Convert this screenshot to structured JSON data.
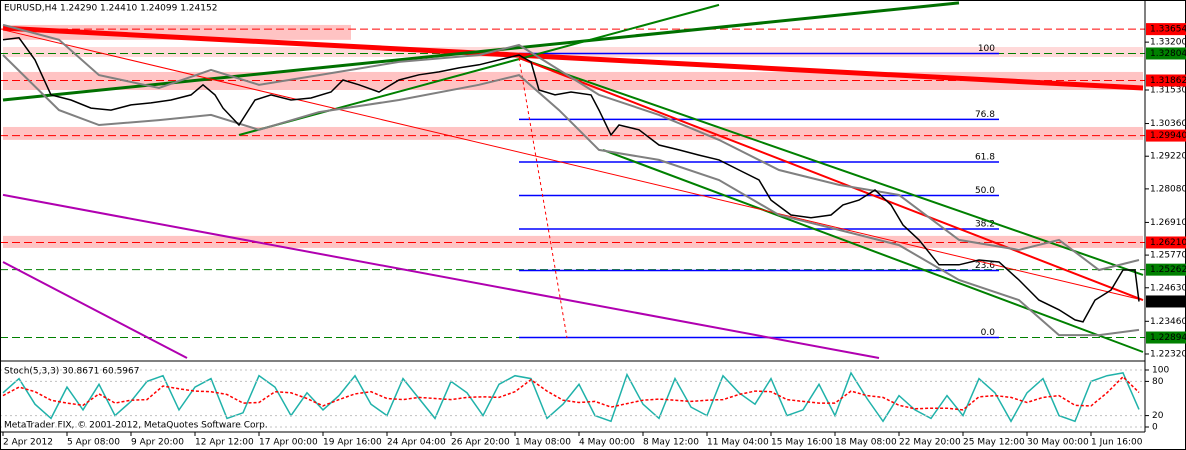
{
  "chart_data": [
    {
      "type": "line",
      "title": "EURUSD,H4  1.24290 1.24410 1.24099 1.24152",
      "xlim": [
        0,
        285
      ],
      "xticks": [
        {
          "value": 0,
          "label": "2 Apr 2012"
        },
        {
          "value": 16,
          "label": "5 Apr 08:00"
        },
        {
          "value": 32,
          "label": "9 Apr 20:00"
        },
        {
          "value": 48,
          "label": "12 Apr 12:00"
        },
        {
          "value": 64,
          "label": "17 Apr 00:00"
        },
        {
          "value": 80,
          "label": "19 Apr 16:00"
        },
        {
          "value": 96,
          "label": "24 Apr 04:00"
        },
        {
          "value": 112,
          "label": "26 Apr 20:00"
        },
        {
          "value": 128,
          "label": "1 May 08:00"
        },
        {
          "value": 144,
          "label": "4 May 00:00"
        },
        {
          "value": 160,
          "label": "8 May 12:00"
        },
        {
          "value": 176,
          "label": "11 May 04:00"
        },
        {
          "value": 192,
          "label": "15 May 16:00"
        },
        {
          "value": 208,
          "label": "18 May 08:00"
        },
        {
          "value": 224,
          "label": "22 May 20:00"
        },
        {
          "value": 240,
          "label": "25 May 12:00"
        },
        {
          "value": 256,
          "label": "30 May 00:00"
        },
        {
          "value": 272,
          "label": "1 Jun 16:00"
        }
      ],
      "ylim": [
        1.2211,
        1.3467
      ],
      "yticks": [
        {
          "value": 1.332,
          "label": "1.33200"
        },
        {
          "value": 1.3153,
          "label": "1.31530"
        },
        {
          "value": 1.3036,
          "label": "1.30360"
        },
        {
          "value": 1.2922,
          "label": "1.29220"
        },
        {
          "value": 1.2808,
          "label": "1.28080"
        },
        {
          "value": 1.2691,
          "label": "1.26910"
        },
        {
          "value": 1.2577,
          "label": "1.25770"
        },
        {
          "value": 1.2463,
          "label": "1.24630"
        },
        {
          "value": 1.2346,
          "label": "1.23460"
        },
        {
          "value": 1.2232,
          "label": "1.22320"
        }
      ],
      "grid": false,
      "series": [
        {
          "color": "#000000",
          "x": [
            0,
            4,
            8,
            12,
            17,
            22,
            27,
            32,
            37,
            42,
            47,
            50,
            53,
            55,
            59,
            63,
            67,
            72,
            77,
            82,
            85,
            89,
            94,
            99,
            104,
            109,
            114,
            119,
            124,
            129,
            132,
            134,
            138,
            142,
            147,
            149,
            152,
            154,
            159,
            164,
            169,
            174,
            179,
            184,
            189,
            192,
            197,
            202,
            207,
            210,
            214,
            218,
            222,
            225,
            229,
            234,
            239,
            244,
            249,
            254,
            259,
            264,
            268,
            270,
            273,
            277,
            280,
            283,
            284
          ],
          "values": [
            1.3328,
            1.3335,
            1.3258,
            1.3136,
            1.3118,
            1.309,
            1.3083,
            1.3101,
            1.3108,
            1.3118,
            1.3136,
            1.3171,
            1.3136,
            1.309,
            1.3031,
            1.3118,
            1.3136,
            1.3118,
            1.3125,
            1.3146,
            1.3188,
            1.3171,
            1.3146,
            1.3188,
            1.3206,
            1.3216,
            1.323,
            1.3241,
            1.3258,
            1.3275,
            1.3251,
            1.3153,
            1.3136,
            1.3146,
            1.3136,
            1.3083,
            1.2996,
            1.3031,
            1.3014,
            1.2961,
            1.2944,
            1.2926,
            1.2909,
            1.2874,
            1.2839,
            1.2769,
            1.2717,
            1.2707,
            1.2717,
            1.2752,
            1.2769,
            1.2804,
            1.2752,
            1.2682,
            1.263,
            1.2543,
            1.2543,
            1.256,
            1.2553,
            1.249,
            1.242,
            1.2386,
            1.2351,
            1.2344,
            1.242,
            1.2455,
            1.2525,
            1.2525,
            1.24152
          ]
        }
      ],
      "bands": {
        "color": "#808080",
        "x": [
          0,
          14,
          24,
          39,
          52,
          64,
          79,
          99,
          119,
          129,
          139,
          149,
          164,
          179,
          194,
          209,
          224,
          239,
          254,
          264,
          274,
          284
        ],
        "upper": [
          1.338,
          1.3328,
          1.3205,
          1.316,
          1.3223,
          1.3171,
          1.3205,
          1.3251,
          1.3275,
          1.331,
          1.3223,
          1.3136,
          1.3066,
          1.2979,
          1.2874,
          1.2822,
          1.2787,
          1.263,
          1.2595,
          1.263,
          1.2525,
          1.256
        ],
        "lower": [
          1.3275,
          1.3083,
          1.3031,
          1.3048,
          1.3066,
          1.3014,
          1.3076,
          1.3118,
          1.3171,
          1.3205,
          1.3083,
          1.2944,
          1.2909,
          1.2839,
          1.2717,
          1.2665,
          1.2612,
          1.249,
          1.242,
          1.2298,
          1.2298,
          1.2316
        ]
      },
      "zones": [
        {
          "x": [
            0,
            87
          ],
          "range": [
            1.3328,
            1.338
          ],
          "color": "#ffb4b4"
        },
        {
          "x": [
            0,
            285
          ],
          "range": [
            1.3268,
            1.3303
          ],
          "color": "#ffd0d0"
        },
        {
          "x": [
            0,
            285
          ],
          "range": [
            1.3153,
            1.3216
          ],
          "color": "#ffb4b4"
        },
        {
          "x": [
            0,
            285
          ],
          "range": [
            1.2979,
            1.3024
          ],
          "color": "#ffb4b4"
        },
        {
          "x": [
            0,
            285
          ],
          "range": [
            1.2602,
            1.2644
          ],
          "color": "#ffb4b4"
        }
      ],
      "levels": [
        {
          "value": 1.33654,
          "color": "#ff0000",
          "line": true
        },
        {
          "value": 1.32804,
          "color": "#008000",
          "line": true
        },
        {
          "value": 1.31862,
          "color": "#ff0000",
          "line": true
        },
        {
          "value": 1.2994,
          "label": "1.29940",
          "color": "#ff0000",
          "line": true
        },
        {
          "value": 1.2621,
          "label": "1.26210",
          "color": "#ff0000",
          "line": true
        },
        {
          "value": 1.25262,
          "color": "#008000",
          "line": true
        },
        {
          "value": 1.24152,
          "color": "#000000",
          "line": false
        },
        {
          "value": 1.22894,
          "color": "#008000",
          "line": true
        }
      ],
      "fib": {
        "x": [
          129,
          249
        ],
        "color": "#0000ff",
        "levels": [
          {
            "label": "100",
            "value": 1.32804
          },
          {
            "label": "76.8",
            "value": 1.30505
          },
          {
            "label": "61.8",
            "value": 1.29018
          },
          {
            "label": "50.0",
            "value": 1.27849
          },
          {
            "label": "38.2",
            "value": 1.2668
          },
          {
            "label": "23.6",
            "value": 1.25233
          },
          {
            "label": "0.0",
            "value": 1.22894
          }
        ]
      },
      "trendlines": [
        {
          "x": [
            0,
            285
          ],
          "values": [
            1.3369,
            1.316
          ],
          "color": "#ff0000",
          "width": 5,
          "dash": false
        },
        {
          "x": [
            0,
            239
          ],
          "values": [
            1.3118,
            1.3457
          ],
          "color": "#007000",
          "width": 3,
          "dash": false
        },
        {
          "x": [
            59,
            179
          ],
          "values": [
            1.2996,
            1.345
          ],
          "color": "#008000",
          "width": 2,
          "dash": false
        },
        {
          "x": [
            150,
            285
          ],
          "values": [
            1.2944,
            1.2239
          ],
          "color": "#008000",
          "width": 2,
          "dash": false
        },
        {
          "x": [
            129,
            285
          ],
          "values": [
            1.3265,
            1.2508
          ],
          "color": "#008000",
          "width": 2,
          "dash": false
        },
        {
          "x": [
            129,
            285
          ],
          "values": [
            1.3265,
            1.242
          ],
          "color": "#ff0000",
          "width": 2,
          "dash": false
        },
        {
          "x": [
            0,
            285
          ],
          "values": [
            1.3363,
            1.242
          ],
          "color": "#ff0000",
          "width": 1,
          "dash": false
        },
        {
          "x": [
            0,
            219
          ],
          "values": [
            1.2787,
            1.2218
          ],
          "color": "#b000b0",
          "width": 2,
          "dash": false
        },
        {
          "x": [
            0,
            46
          ],
          "values": [
            1.2553,
            1.2218
          ],
          "color": "#b000b0",
          "width": 2,
          "dash": false
        },
        {
          "x": [
            129,
            141
          ],
          "values": [
            1.3265,
            1.2288
          ],
          "color": "#ff0000",
          "width": 1,
          "dash": true
        }
      ],
      "annotation": "MetaTrader FIX, © 2001-2012, MetaQuotes Software Corp."
    },
    {
      "type": "line",
      "title": "Stoch(5,3,3) 30.8671 60.5967",
      "xlim": [
        0,
        285
      ],
      "ylim": [
        0,
        100
      ],
      "yticks": [
        100,
        80,
        20,
        0
      ],
      "grid": true,
      "x": [
        0,
        4,
        8,
        12,
        16,
        20,
        24,
        28,
        32,
        36,
        40,
        44,
        48,
        52,
        56,
        60,
        64,
        68,
        72,
        76,
        80,
        84,
        88,
        92,
        96,
        100,
        104,
        108,
        112,
        116,
        120,
        124,
        128,
        132,
        136,
        140,
        144,
        148,
        152,
        156,
        160,
        164,
        168,
        172,
        176,
        180,
        184,
        188,
        192,
        196,
        200,
        204,
        208,
        212,
        216,
        220,
        224,
        228,
        232,
        236,
        240,
        244,
        248,
        252,
        256,
        260,
        264,
        268,
        272,
        276,
        280,
        284
      ],
      "series": [
        {
          "color": "#20b2aa",
          "dash": false,
          "values": [
            60,
            85,
            40,
            15,
            70,
            30,
            75,
            20,
            45,
            80,
            90,
            30,
            70,
            85,
            15,
            25,
            90,
            70,
            20,
            60,
            30,
            55,
            90,
            40,
            20,
            85,
            50,
            15,
            80,
            60,
            20,
            75,
            90,
            85,
            15,
            40,
            75,
            20,
            10,
            92,
            40,
            15,
            85,
            35,
            20,
            90,
            60,
            40,
            85,
            20,
            30,
            75,
            20,
            95,
            50,
            10,
            55,
            30,
            15,
            55,
            20,
            85,
            60,
            10,
            60,
            85,
            20,
            10,
            80,
            90,
            95,
            30.8671
          ]
        },
        {
          "color": "#ff0000",
          "dash": true,
          "values": [
            55,
            70,
            62,
            47,
            42,
            38,
            58,
            42,
            47,
            48,
            72,
            67,
            63,
            62,
            57,
            42,
            43,
            62,
            60,
            50,
            37,
            48,
            58,
            62,
            50,
            48,
            52,
            50,
            48,
            52,
            53,
            52,
            62,
            83,
            63,
            47,
            43,
            45,
            35,
            41,
            47,
            49,
            47,
            45,
            47,
            48,
            57,
            63,
            62,
            48,
            45,
            42,
            42,
            63,
            55,
            52,
            38,
            32,
            33,
            33,
            30,
            53,
            55,
            52,
            43,
            52,
            55,
            38,
            37,
            60,
            88,
            60.5967
          ]
        }
      ]
    }
  ]
}
